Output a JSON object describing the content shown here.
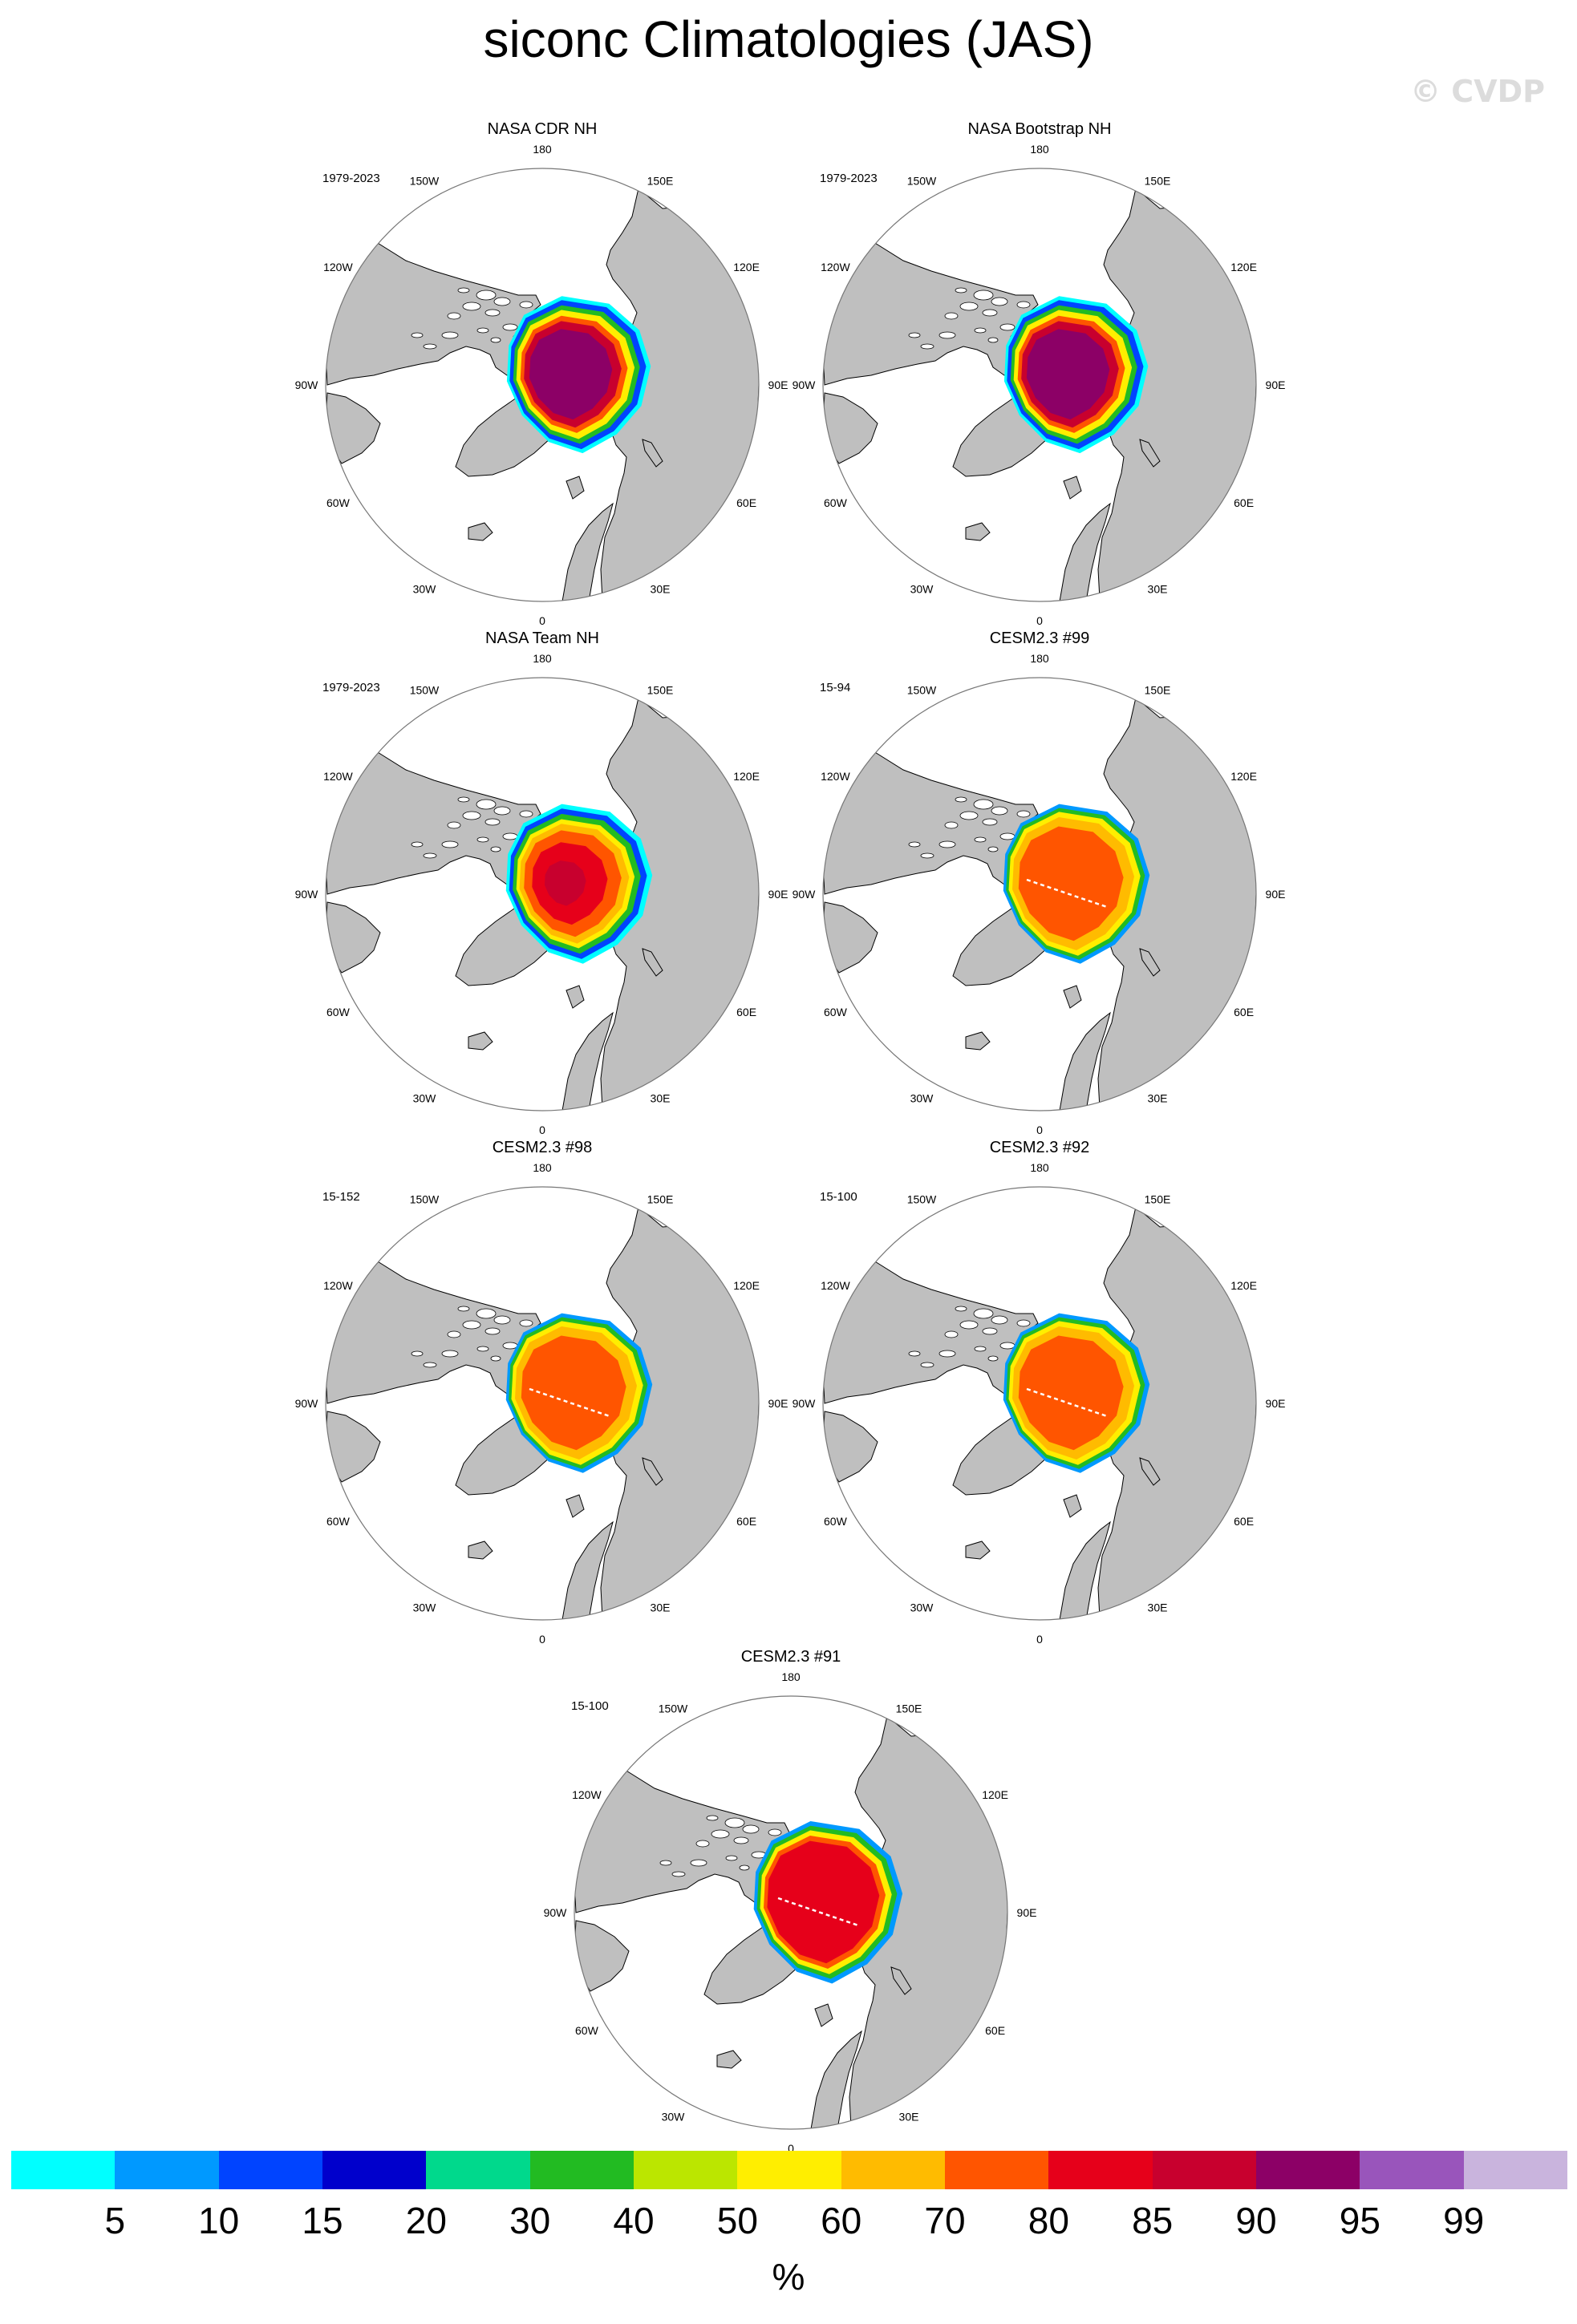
{
  "title": "siconc Climatologies (JAS)",
  "watermark": "© CVDP",
  "colorbar": {
    "unit": "%",
    "ticks": [
      "5",
      "10",
      "15",
      "20",
      "30",
      "40",
      "50",
      "60",
      "70",
      "80",
      "85",
      "90",
      "95",
      "99"
    ],
    "colors": [
      "#00ffff",
      "#0099ff",
      "#0044ff",
      "#0000cc",
      "#00d98c",
      "#22bb22",
      "#bbe600",
      "#ffee00",
      "#ffbb00",
      "#ff5500",
      "#e6001a",
      "#c8002e",
      "#8c0066",
      "#9955bb",
      "#c9b4dd"
    ]
  },
  "map_colors": {
    "land": "#bfbfbf",
    "ocean": "#ffffff",
    "coast": "#000000"
  },
  "longitude_labels": [
    "180",
    "150E",
    "120E",
    "90E",
    "60E",
    "30E",
    "0",
    "30W",
    "60W",
    "90W",
    "120W",
    "150W"
  ],
  "chart_data": [
    {
      "type": "heatmap",
      "projection": "north-polar-stereographic",
      "variable": "siconc",
      "season": "JAS",
      "title": "NASA CDR NH",
      "years": "1979-2023",
      "core_level": 95
    },
    {
      "type": "heatmap",
      "projection": "north-polar-stereographic",
      "variable": "siconc",
      "season": "JAS",
      "title": "NASA Bootstrap NH",
      "years": "1979-2023",
      "core_level": 95
    },
    {
      "type": "heatmap",
      "projection": "north-polar-stereographic",
      "variable": "siconc",
      "season": "JAS",
      "title": "NASA Team NH",
      "years": "1979-2023",
      "core_level": 85
    },
    {
      "type": "heatmap",
      "projection": "north-polar-stereographic",
      "variable": "siconc",
      "season": "JAS",
      "title": "CESM2.3 #99",
      "years": "15-94",
      "core_level": 80
    },
    {
      "type": "heatmap",
      "projection": "north-polar-stereographic",
      "variable": "siconc",
      "season": "JAS",
      "title": "CESM2.3 #98",
      "years": "15-152",
      "core_level": 80
    },
    {
      "type": "heatmap",
      "projection": "north-polar-stereographic",
      "variable": "siconc",
      "season": "JAS",
      "title": "CESM2.3 #92",
      "years": "15-100",
      "core_level": 80
    },
    {
      "type": "heatmap",
      "projection": "north-polar-stereographic",
      "variable": "siconc",
      "season": "JAS",
      "title": "CESM2.3 #91",
      "years": "15-100",
      "core_level": 85
    }
  ]
}
